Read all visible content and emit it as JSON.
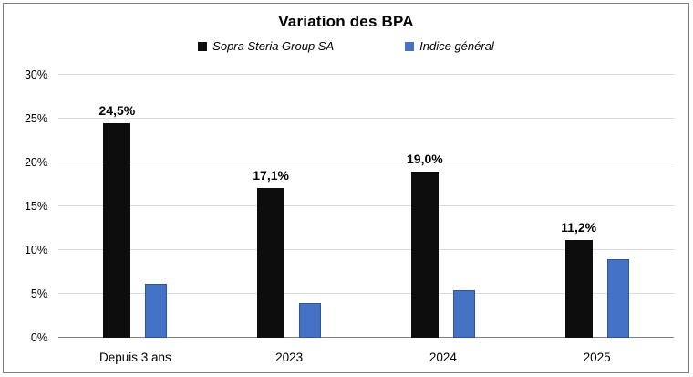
{
  "chart_data": {
    "type": "bar",
    "title": "Variation des BPA",
    "categories": [
      "Depuis 3 ans",
      "2023",
      "2024",
      "2025"
    ],
    "series": [
      {
        "name": "Sopra Steria Group SA",
        "color": "#0d0d0d",
        "values": [
          24.5,
          17.1,
          19.0,
          11.2
        ],
        "labels": [
          "24,5%",
          "17,1%",
          "19,0%",
          "11,2%"
        ]
      },
      {
        "name": "Indice général",
        "color": "#4472c4",
        "border_color": "#2e5597",
        "values": [
          6.1,
          4.0,
          5.4,
          9.0
        ],
        "labels": []
      }
    ],
    "ylim": [
      0,
      30
    ],
    "yticks": [
      {
        "value": 0,
        "label": "0%"
      },
      {
        "value": 5,
        "label": "5%"
      },
      {
        "value": 10,
        "label": "10%"
      },
      {
        "value": 15,
        "label": "15%"
      },
      {
        "value": 20,
        "label": "20%"
      },
      {
        "value": 25,
        "label": "25%"
      },
      {
        "value": 30,
        "label": "30%"
      }
    ],
    "grid": true,
    "legend_position": "top"
  },
  "colors": {
    "gridline": "#d9d9d9",
    "axis_line": "#808080",
    "frame_border": "#808080"
  }
}
